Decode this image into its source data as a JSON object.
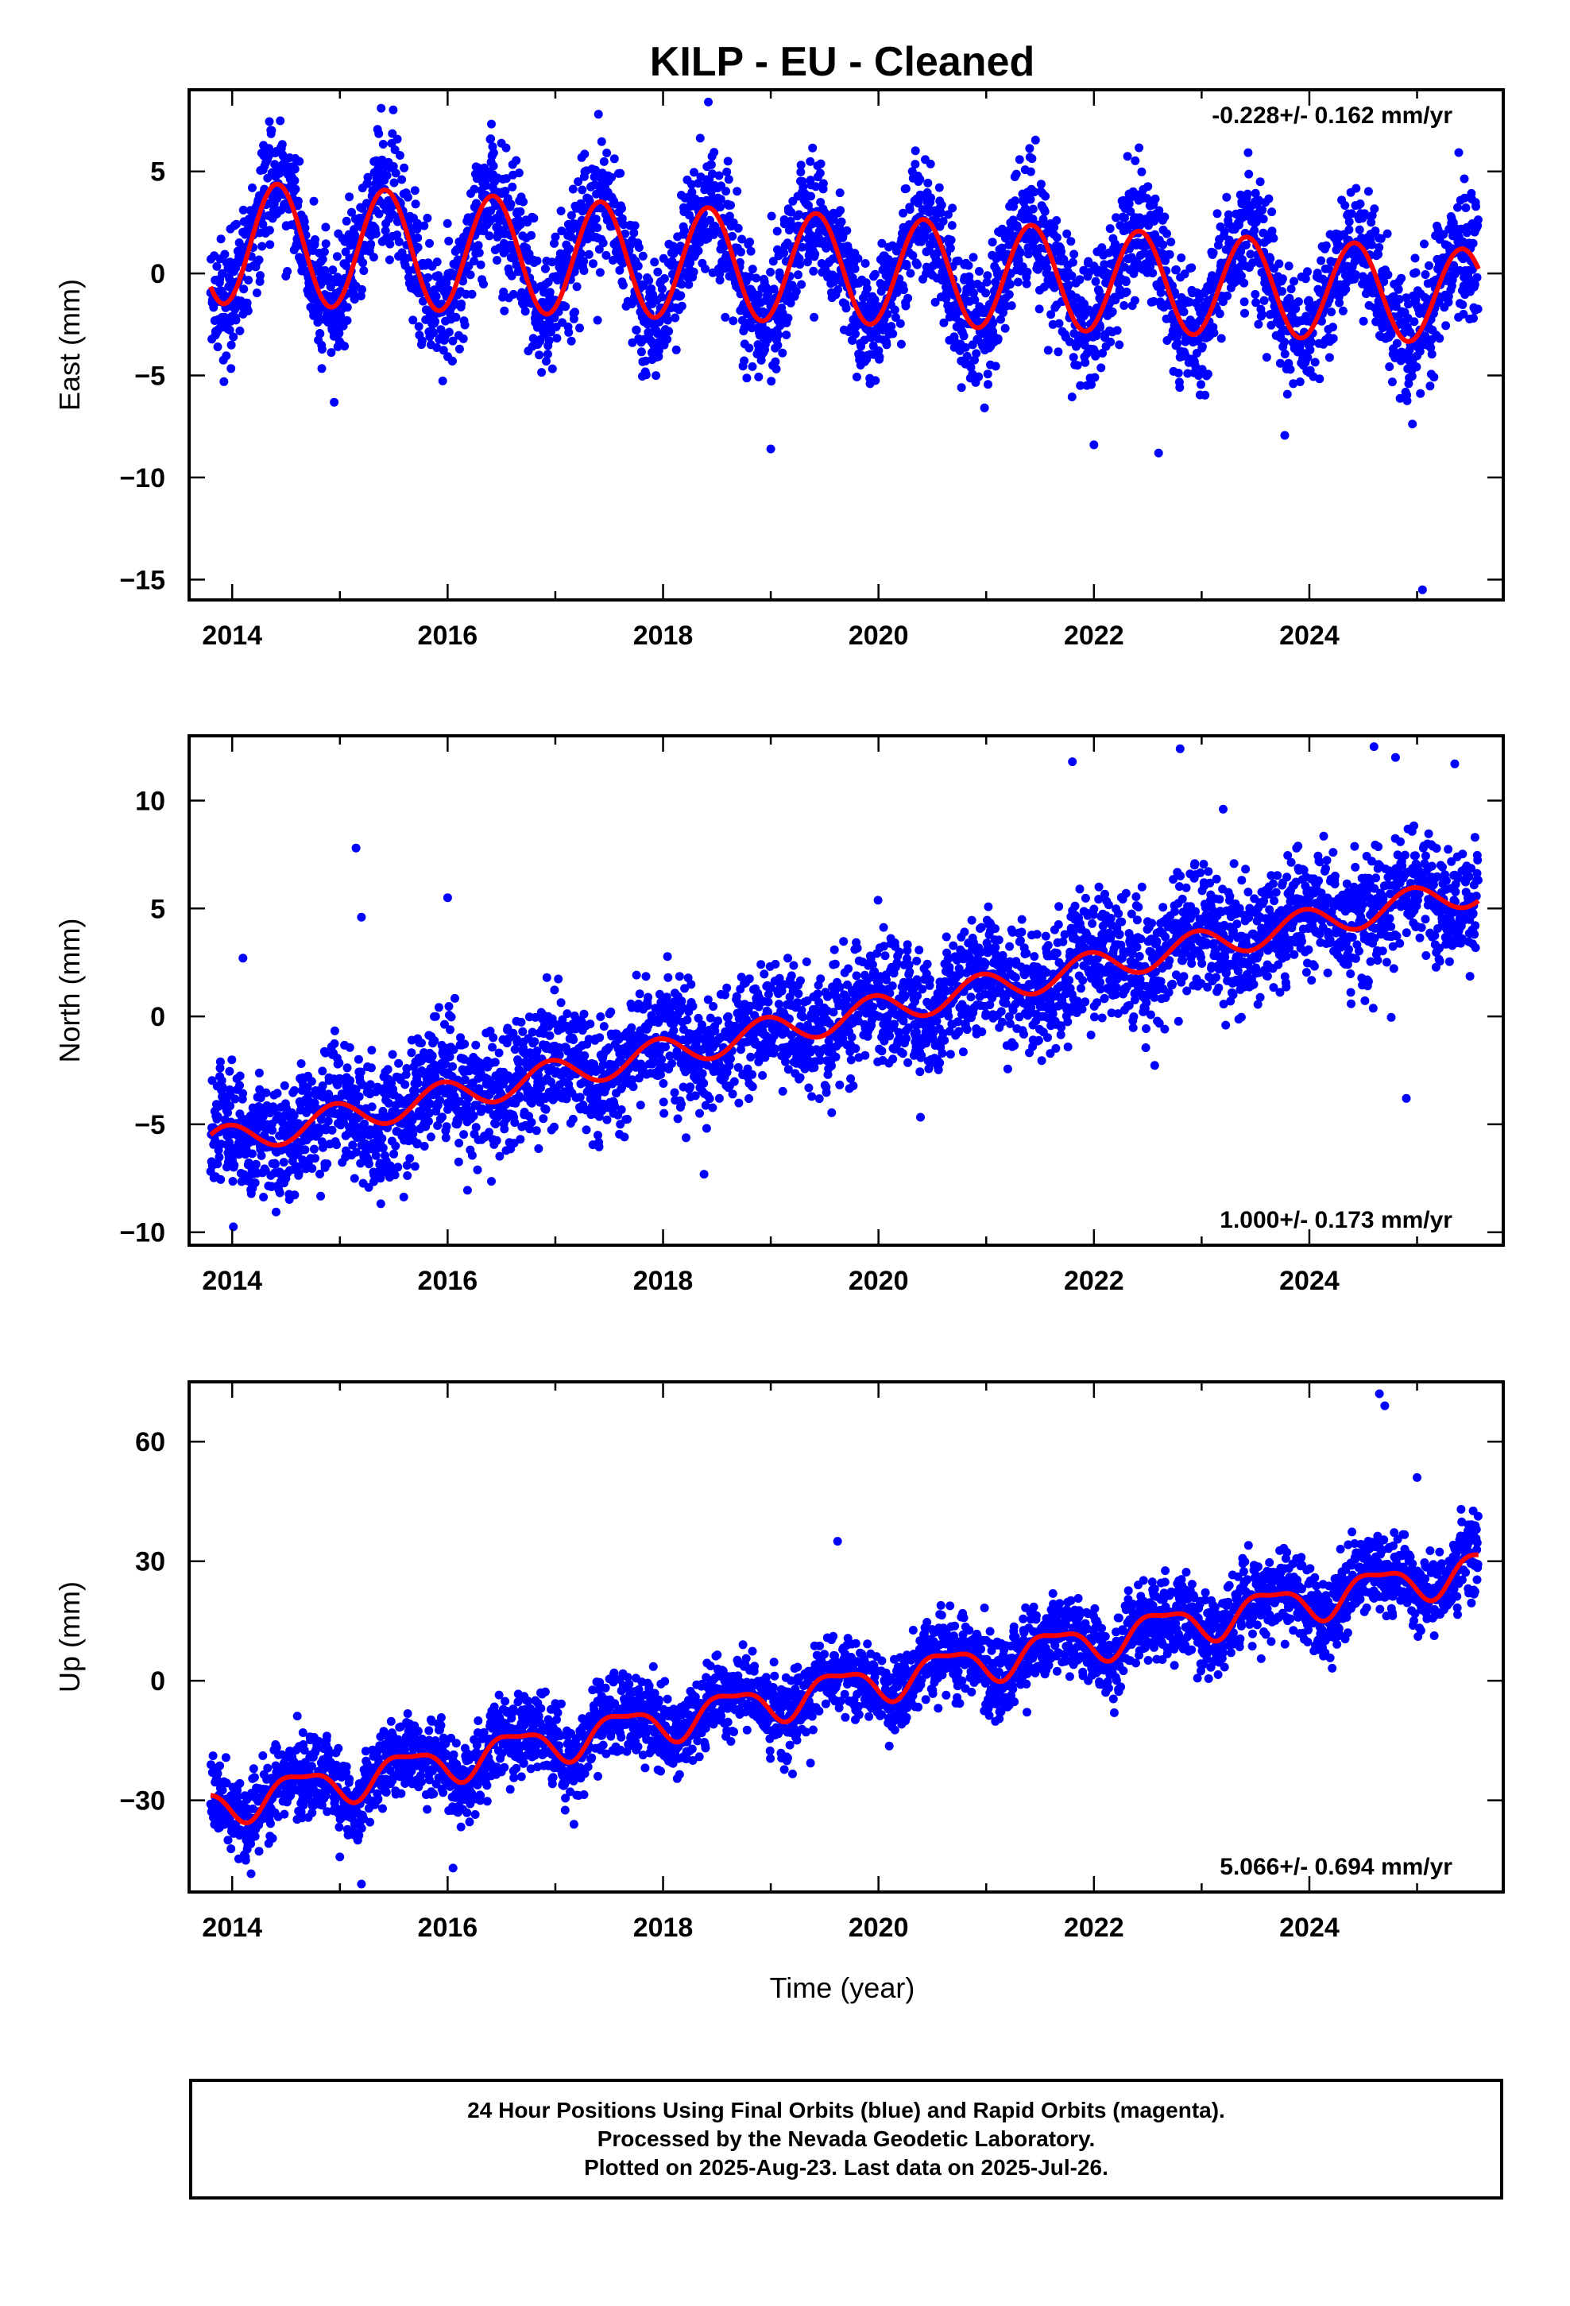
{
  "title": "KILP  - EU - Cleaned",
  "x_axis": {
    "label": "Time (year)",
    "range": [
      2013.6,
      2025.8
    ],
    "ticks": [
      2014,
      2016,
      2018,
      2020,
      2022,
      2024
    ],
    "tick_labels": [
      "2014",
      "2016",
      "2018",
      "2020",
      "2022",
      "2024"
    ]
  },
  "chart_data": [
    {
      "type": "scatter",
      "name": "east",
      "ylabel": "East (mm)",
      "xlim": [
        2013.6,
        2025.8
      ],
      "ylim": [
        -16,
        9
      ],
      "yticks": [
        5,
        0,
        -5,
        -10,
        -15
      ],
      "ytick_labels": [
        "5",
        "0",
        "−5",
        "−10",
        "−15"
      ],
      "rate_label": "-0.228+/- 0.162 mm/yr",
      "rate_position": "top-right",
      "data_start": 2013.8,
      "data_end": 2025.57,
      "trend_mm_per_yr": -0.228,
      "offset_mm": 0.2,
      "annual_amp_mm": 3.0,
      "annual_amp_growth_per_yr": -0.02,
      "annual_peak_phase": 0.42,
      "semiannual_amp_mm": 0.0,
      "semiannual_peak_phase": 0.0,
      "scatter_sd_mm": 1.4,
      "outliers": [
        [
          2018.42,
          8.4
        ],
        [
          2019.0,
          -8.6
        ],
        [
          2022.0,
          -8.4
        ],
        [
          2022.6,
          -8.8
        ],
        [
          2025.05,
          -15.5
        ],
        [
          2017.4,
          7.8
        ],
        [
          2016.4,
          6.6
        ]
      ]
    },
    {
      "type": "scatter",
      "name": "north",
      "ylabel": "North (mm)",
      "xlim": [
        2013.6,
        2025.8
      ],
      "ylim": [
        -10.6,
        13
      ],
      "yticks": [
        10,
        5,
        0,
        -5,
        -10
      ],
      "ytick_labels": [
        "10",
        "5",
        "0",
        "−5",
        "−10"
      ],
      "rate_label": "1.000+/- 0.173 mm/yr",
      "rate_position": "bottom-right",
      "data_start": 2013.8,
      "data_end": 2025.57,
      "trend_mm_per_yr": 1.0,
      "offset_mm": 0.0,
      "annual_amp_mm": 0.7,
      "annual_amp_growth_per_yr": 0.0,
      "annual_peak_phase": 0.95,
      "semiannual_amp_mm": 0.0,
      "semiannual_peak_phase": 0.0,
      "scatter_sd_mm": 1.3,
      "outliers": [
        [
          2015.15,
          7.8
        ],
        [
          2015.2,
          4.6
        ],
        [
          2016.0,
          5.5
        ],
        [
          2014.1,
          2.7
        ],
        [
          2021.8,
          11.8
        ],
        [
          2022.8,
          12.4
        ],
        [
          2024.6,
          12.5
        ],
        [
          2024.8,
          12.0
        ],
        [
          2025.35,
          11.7
        ],
        [
          2024.9,
          -3.8
        ],
        [
          2023.2,
          9.6
        ]
      ]
    },
    {
      "type": "scatter",
      "name": "up",
      "ylabel": "Up (mm)",
      "xlim": [
        2013.6,
        2025.8
      ],
      "ylim": [
        -53,
        75
      ],
      "yticks": [
        60,
        30,
        0,
        -30
      ],
      "ytick_labels": [
        "60",
        "30",
        "0",
        "−30"
      ],
      "rate_label": "5.066+/- 0.694 mm/yr",
      "rate_position": "bottom-right",
      "data_start": 2013.8,
      "data_end": 2025.57,
      "trend_mm_per_yr": 5.066,
      "offset_mm": -1.5,
      "annual_amp_mm": 4.5,
      "annual_amp_growth_per_yr": 0.0,
      "annual_peak_phase": 0.63,
      "semiannual_amp_mm": 1.5,
      "semiannual_peak_phase": 0.4,
      "scatter_sd_mm": 4.5,
      "outliers": [
        [
          2015.2,
          -51
        ],
        [
          2016.05,
          -47
        ],
        [
          2024.65,
          72
        ],
        [
          2024.7,
          69
        ],
        [
          2019.62,
          35
        ],
        [
          2025.0,
          51
        ]
      ]
    }
  ],
  "series_styles": {
    "final_orbits_color": "#0000ff",
    "model_fit_color": "#ff0000"
  },
  "caption": {
    "line1": "24 Hour Positions Using Final Orbits (blue) and Rapid Orbits (magenta).",
    "line2": "Processed by the Nevada Geodetic Laboratory.",
    "line3": "Plotted on 2025-Aug-23. Last data on 2025-Jul-26."
  }
}
